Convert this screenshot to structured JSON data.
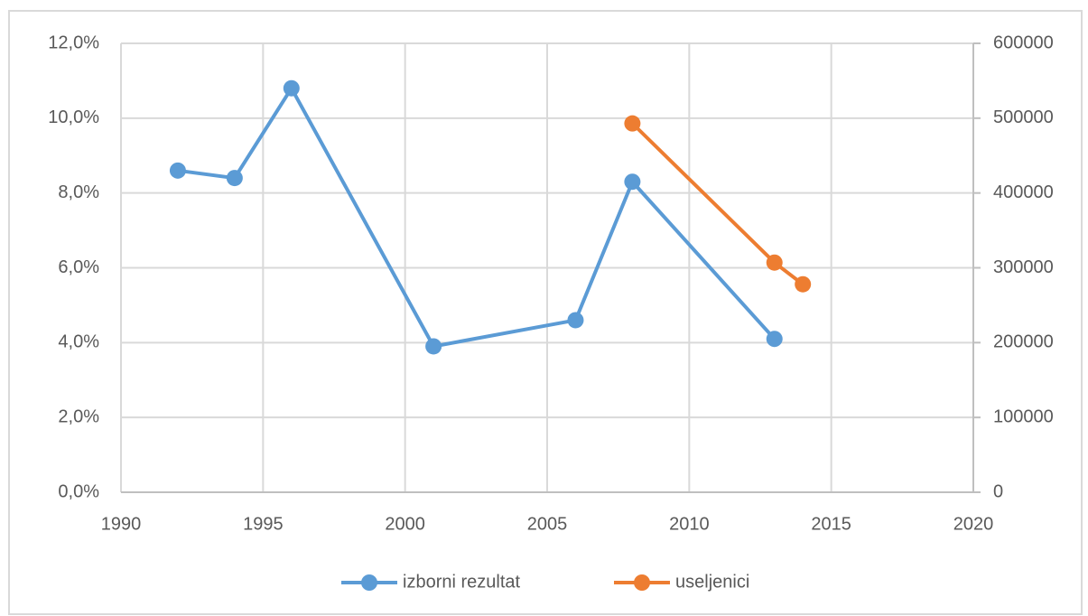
{
  "chart_data": {
    "type": "line",
    "x": [
      1992,
      1994,
      1996,
      2001,
      2006,
      2008,
      2013,
      2014
    ],
    "series": [
      {
        "name": "izborni rezultat",
        "color": "#5b9bd5",
        "values": [
          8.6,
          8.4,
          10.8,
          3.9,
          4.6,
          8.3,
          4.1,
          null
        ]
      },
      {
        "name": "useljenici",
        "color": "#ed7d31",
        "axis": "y2",
        "values": [
          null,
          null,
          null,
          null,
          null,
          493000,
          307000,
          278000
        ]
      }
    ],
    "xlim": [
      1990,
      2020
    ],
    "xticks": [
      1990,
      1995,
      2000,
      2005,
      2010,
      2015,
      2020
    ],
    "ylim": [
      0,
      12
    ],
    "yticks": [
      {
        "value": 0,
        "label": "0,0%"
      },
      {
        "value": 2,
        "label": "2,0%"
      },
      {
        "value": 4,
        "label": "4,0%"
      },
      {
        "value": 6,
        "label": "6,0%"
      },
      {
        "value": 8,
        "label": "8,0%"
      },
      {
        "value": 10,
        "label": "10,0%"
      },
      {
        "value": 12,
        "label": "12,0%"
      }
    ],
    "y2lim": [
      0,
      600000
    ],
    "y2ticks": [
      0,
      100000,
      200000,
      300000,
      400000,
      500000,
      600000
    ],
    "grid": true,
    "legend": "bottom"
  }
}
